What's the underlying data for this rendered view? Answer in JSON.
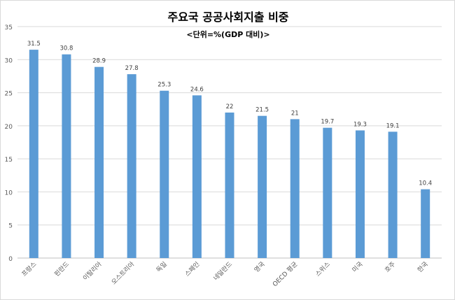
{
  "chart_data": {
    "type": "bar",
    "title": "주요국 공공사회지출 비중",
    "subtitle": "<단위=%(GDP 대비)>",
    "xlabel": "",
    "ylabel": "",
    "categories": [
      "프랑스",
      "핀란드",
      "이탈리아",
      "오스트리아",
      "독일",
      "스페인",
      "네덜란드",
      "영국",
      "OECD 평균",
      "스위스",
      "미국",
      "호주",
      "한국"
    ],
    "values": [
      31.5,
      30.8,
      28.9,
      27.8,
      25.3,
      24.6,
      22,
      21.5,
      21,
      19.7,
      19.3,
      19.1,
      10.4
    ],
    "ylim": [
      0,
      35
    ],
    "yticks": [
      0,
      5,
      10,
      15,
      20,
      25,
      30,
      35
    ],
    "grid": true,
    "legend": "none",
    "bar_color": "#5b9bd5",
    "grid_color": "#d9d9d9"
  }
}
